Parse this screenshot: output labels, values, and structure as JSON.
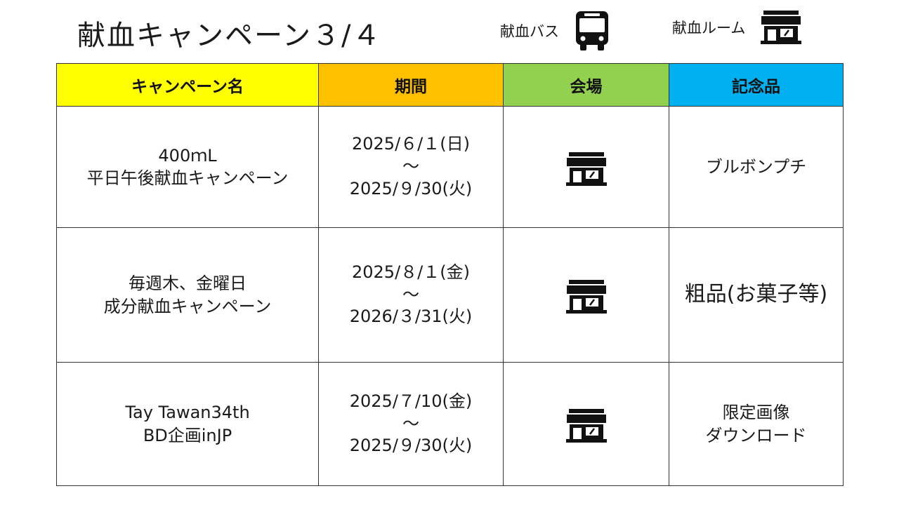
{
  "header": {
    "title": "献血キャンペーン３/４",
    "legend": [
      {
        "label": "献血バス",
        "icon": "bus-icon"
      },
      {
        "label": "献血ルーム",
        "icon": "shop-icon"
      }
    ]
  },
  "table": {
    "columns": [
      {
        "label": "キャンペーン名",
        "color": "#ffff00"
      },
      {
        "label": "期間",
        "color": "#ffc000"
      },
      {
        "label": "会場",
        "color": "#92d050"
      },
      {
        "label": "記念品",
        "color": "#00b0f0"
      }
    ],
    "rows": [
      {
        "name": [
          "400ｍL",
          "平日午後献血キャンペーン"
        ],
        "period": [
          "2025/６/１(日)",
          "～",
          "2025/９/30(火)"
        ],
        "venue_icon": "shop-icon",
        "gift": [
          "ブルボンプチ"
        ]
      },
      {
        "name": [
          "毎週木、金曜日",
          "成分献血キャンペーン"
        ],
        "period": [
          "2025/８/１(金)",
          "～",
          "2026/３/31(火)"
        ],
        "venue_icon": "shop-icon",
        "gift": [
          "粗品(お菓子等)"
        ]
      },
      {
        "name": [
          "Tay Tawan34th",
          "BD企画inJP"
        ],
        "period": [
          "2025/７/10(金)",
          "～",
          "2025/９/30(火)"
        ],
        "venue_icon": "shop-icon",
        "gift": [
          "限定画像",
          "ダウンロード"
        ]
      }
    ]
  }
}
